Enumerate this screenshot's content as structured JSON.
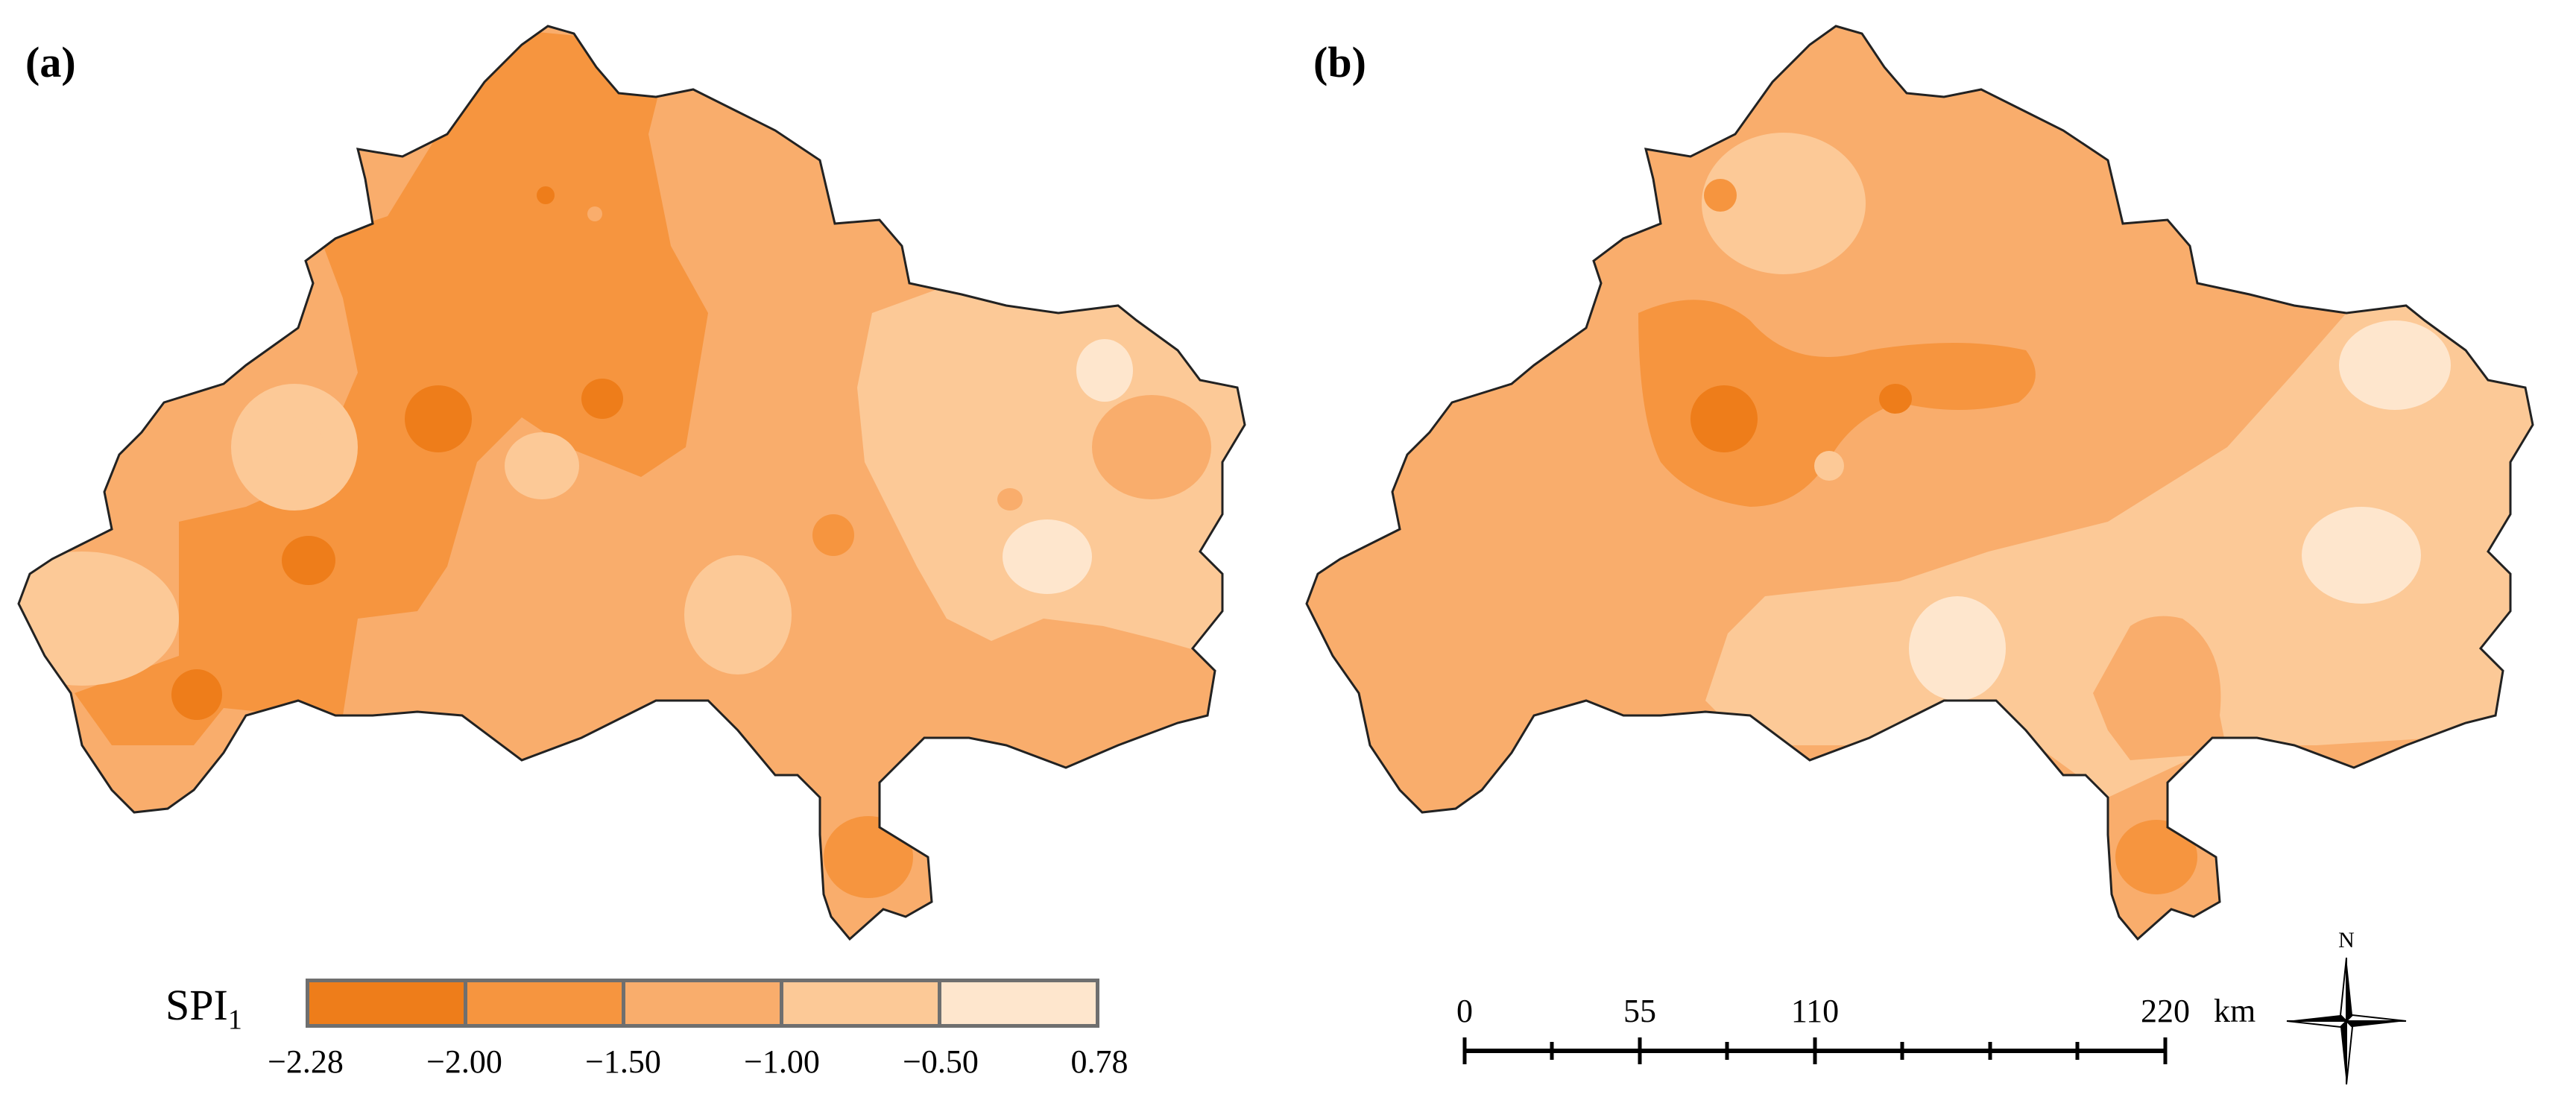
{
  "panels": [
    {
      "label": "(a)"
    },
    {
      "label": "(b)"
    }
  ],
  "legend": {
    "title": "SPI",
    "title_subscript": "1",
    "classes": [
      {
        "range": "-2.28 to -2.00",
        "color": "#ee7d1a"
      },
      {
        "range": "-2.00 to -1.50",
        "color": "#f6953f"
      },
      {
        "range": "-1.50 to -1.00",
        "color": "#f9ad6c"
      },
      {
        "range": "-1.00 to -0.50",
        "color": "#fcc997"
      },
      {
        "range": "-0.50 to 0.78",
        "color": "#fee6cd"
      }
    ],
    "breaks": [
      "−2.28",
      "−2.00",
      "−1.50",
      "−1.00",
      "−0.50",
      "0.78"
    ]
  },
  "scalebar": {
    "labels": [
      "0",
      "55",
      "110",
      "220"
    ],
    "unit": "km"
  },
  "north_arrow": {
    "label": "N",
    "icon": "compass-rose-icon"
  }
}
